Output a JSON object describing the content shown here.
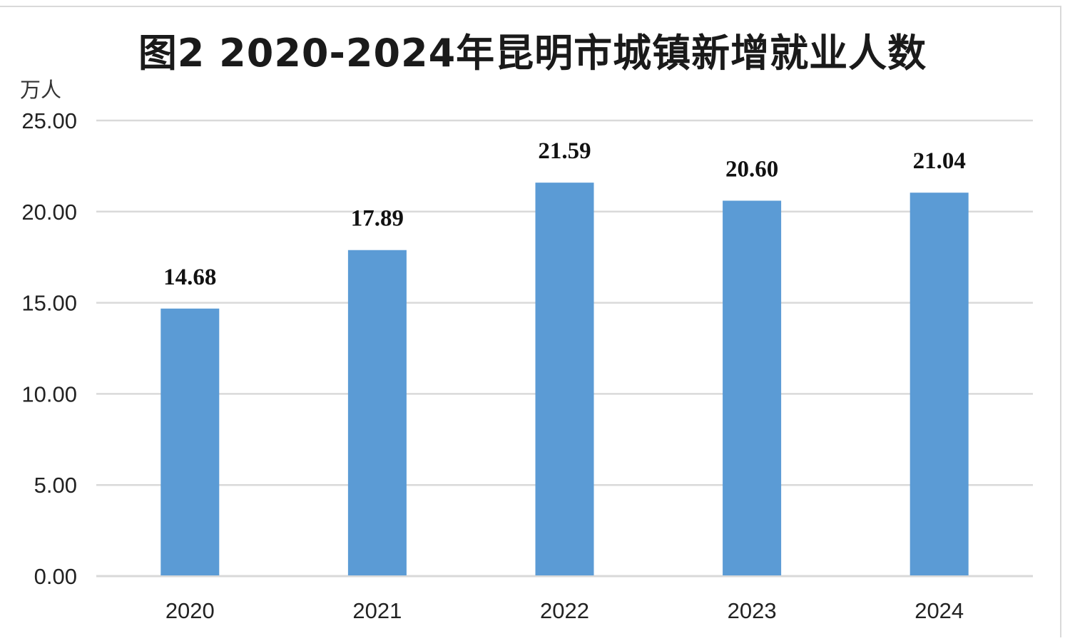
{
  "chart_data": {
    "type": "bar",
    "title": "图2  2020-2024年昆明市城镇新增就业人数",
    "ylabel": "万人",
    "xlabel": "",
    "categories": [
      "2020",
      "2021",
      "2022",
      "2023",
      "2024"
    ],
    "values": [
      14.68,
      17.89,
      21.59,
      20.6,
      21.04
    ],
    "value_labels": [
      "14.68",
      "17.89",
      "21.59",
      "20.60",
      "21.04"
    ],
    "ylim": [
      0,
      25
    ],
    "yticks": [
      "0.00",
      "5.00",
      "10.00",
      "15.00",
      "20.00",
      "25.00"
    ],
    "ytick_values": [
      0,
      5,
      10,
      15,
      20,
      25
    ],
    "grid": true,
    "legend": "none",
    "bar_color": "#5b9bd5",
    "grid_color": "#d9d9d9"
  }
}
